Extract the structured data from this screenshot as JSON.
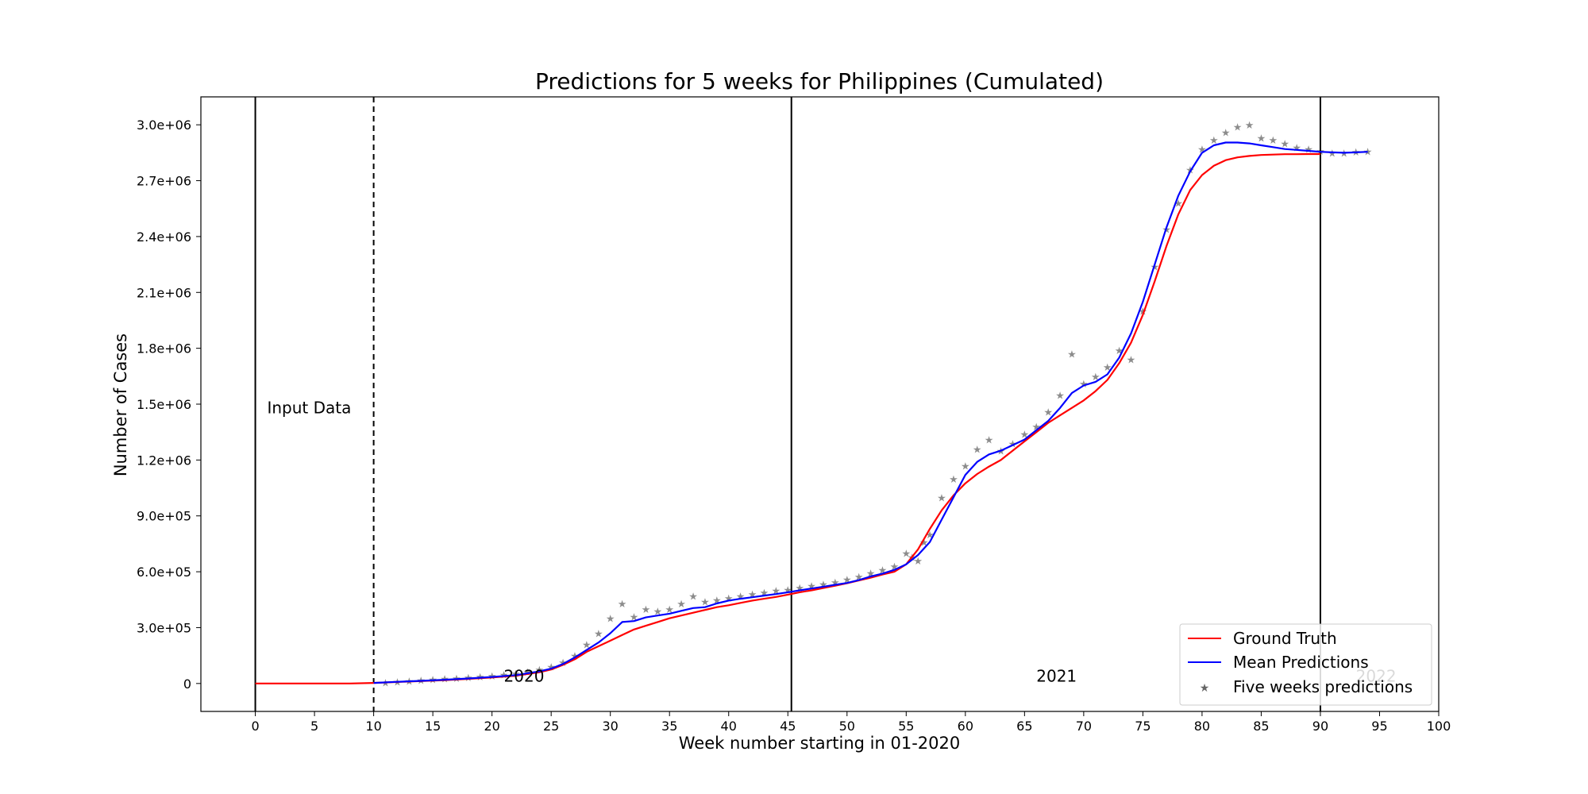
{
  "chart_data": {
    "type": "line",
    "title": "Predictions for 5 weeks for Philippines (Cumulated)",
    "xlabel": "Week number starting in 01-2020",
    "ylabel": "Number of Cases",
    "xlim": [
      -4.6,
      100
    ],
    "ylim": [
      -150000,
      3150000
    ],
    "xticks": [
      0,
      5,
      10,
      15,
      20,
      25,
      30,
      35,
      40,
      45,
      50,
      55,
      60,
      65,
      70,
      75,
      80,
      85,
      90,
      95,
      100
    ],
    "yticks": [
      0,
      300000,
      600000,
      900000,
      1200000,
      1500000,
      1800000,
      2100000,
      2400000,
      2700000,
      3000000
    ],
    "ytick_labels": [
      "0",
      "3.0e+05",
      "6.0e+05",
      "9.0e+05",
      "1.2e+06",
      "1.5e+06",
      "1.8e+06",
      "2.1e+06",
      "2.4e+06",
      "2.7e+06",
      "3.0e+06"
    ],
    "grid": false,
    "legend_position": "lower-right",
    "annotations": [
      {
        "text": "Input Data",
        "x": 1,
        "y": 1450000
      },
      {
        "text": "2020",
        "x": 21,
        "y": 10000
      },
      {
        "text": "2021",
        "x": 66,
        "y": 10000
      },
      {
        "text": "2022",
        "x": 93,
        "y": 10000,
        "color": "#bbbbbb"
      }
    ],
    "vlines": [
      {
        "x": 0,
        "style": "solid"
      },
      {
        "x": 10,
        "style": "dashed"
      },
      {
        "x": 45.3,
        "style": "solid"
      },
      {
        "x": 90,
        "style": "solid"
      }
    ],
    "series": [
      {
        "name": "Ground Truth",
        "color": "#ff0000",
        "x": [
          0,
          2,
          4,
          6,
          8,
          10,
          12,
          14,
          16,
          18,
          20,
          22,
          24,
          25,
          26,
          27,
          28,
          29,
          30,
          31,
          32,
          33,
          34,
          35,
          36,
          37,
          38,
          39,
          40,
          41,
          42,
          43,
          44,
          45,
          46,
          47,
          48,
          49,
          50,
          51,
          52,
          53,
          54,
          55,
          56,
          57,
          58,
          59,
          60,
          61,
          62,
          63,
          64,
          65,
          66,
          67,
          68,
          69,
          70,
          71,
          72,
          73,
          74,
          75,
          76,
          77,
          78,
          79,
          80,
          81,
          82,
          83,
          84,
          85,
          86,
          87,
          88,
          89,
          90
        ],
        "y": [
          0,
          0,
          0,
          0,
          0,
          3000,
          8000,
          13000,
          18000,
          25000,
          32000,
          42000,
          60000,
          75000,
          100000,
          130000,
          170000,
          200000,
          230000,
          260000,
          290000,
          310000,
          330000,
          350000,
          365000,
          380000,
          395000,
          410000,
          420000,
          433000,
          445000,
          455000,
          465000,
          477000,
          490000,
          500000,
          513000,
          525000,
          538000,
          553000,
          568000,
          585000,
          600000,
          640000,
          720000,
          830000,
          930000,
          1010000,
          1075000,
          1125000,
          1165000,
          1200000,
          1250000,
          1300000,
          1350000,
          1400000,
          1440000,
          1480000,
          1520000,
          1570000,
          1630000,
          1720000,
          1830000,
          1980000,
          2160000,
          2350000,
          2520000,
          2650000,
          2730000,
          2780000,
          2810000,
          2825000,
          2833000,
          2838000,
          2840000,
          2842000,
          2842000,
          2843000,
          2843000
        ]
      },
      {
        "name": "Mean Predictions",
        "color": "#0000ff",
        "x": [
          10,
          12,
          14,
          16,
          18,
          20,
          22,
          24,
          25,
          26,
          27,
          28,
          29,
          30,
          31,
          32,
          33,
          34,
          35,
          36,
          37,
          38,
          39,
          40,
          41,
          42,
          43,
          44,
          45,
          46,
          47,
          48,
          49,
          50,
          51,
          52,
          53,
          54,
          55,
          56,
          57,
          58,
          59,
          60,
          61,
          62,
          63,
          64,
          65,
          66,
          67,
          68,
          69,
          70,
          71,
          72,
          73,
          74,
          75,
          76,
          77,
          78,
          79,
          80,
          81,
          82,
          83,
          84,
          85,
          86,
          87,
          88,
          89,
          90,
          91,
          92,
          93,
          94
        ],
        "y": [
          3000,
          9000,
          14000,
          20000,
          27000,
          35000,
          45000,
          65000,
          80000,
          105000,
          140000,
          180000,
          220000,
          270000,
          330000,
          335000,
          355000,
          365000,
          375000,
          390000,
          405000,
          410000,
          430000,
          445000,
          455000,
          463000,
          472000,
          480000,
          490000,
          500000,
          510000,
          520000,
          530000,
          540000,
          555000,
          575000,
          590000,
          610000,
          640000,
          690000,
          760000,
          880000,
          1000000,
          1120000,
          1190000,
          1230000,
          1250000,
          1280000,
          1310000,
          1360000,
          1410000,
          1480000,
          1560000,
          1600000,
          1620000,
          1660000,
          1750000,
          1880000,
          2050000,
          2250000,
          2450000,
          2620000,
          2750000,
          2850000,
          2890000,
          2905000,
          2905000,
          2900000,
          2890000,
          2880000,
          2870000,
          2865000,
          2860000,
          2855000,
          2852000,
          2850000,
          2852000,
          2855000
        ]
      },
      {
        "name": "Five weeks predictions",
        "marker": "star",
        "x": [
          11,
          12,
          13,
          14,
          15,
          16,
          17,
          18,
          19,
          20,
          21,
          22,
          23,
          24,
          25,
          26,
          27,
          28,
          29,
          30,
          31,
          32,
          33,
          34,
          35,
          36,
          37,
          38,
          39,
          40,
          41,
          42,
          43,
          44,
          45,
          46,
          47,
          48,
          49,
          50,
          51,
          52,
          53,
          54,
          55,
          55.5,
          56,
          56.5,
          57,
          58,
          59,
          60,
          61,
          62,
          63,
          64,
          65,
          66,
          67,
          68,
          69,
          70,
          71,
          72,
          73,
          74,
          75,
          76,
          77,
          78,
          79,
          80,
          81,
          82,
          83,
          84,
          85,
          86,
          87,
          88,
          89,
          90,
          91,
          92,
          93,
          94
        ],
        "y": [
          5000,
          10000,
          14000,
          18000,
          22000,
          26000,
          30000,
          34000,
          38000,
          42000,
          48000,
          55000,
          64000,
          75000,
          90000,
          115000,
          150000,
          210000,
          270000,
          350000,
          430000,
          360000,
          400000,
          390000,
          400000,
          430000,
          470000,
          440000,
          450000,
          460000,
          470000,
          480000,
          490000,
          500000,
          505000,
          515000,
          525000,
          535000,
          545000,
          560000,
          575000,
          595000,
          610000,
          630000,
          700000,
          680000,
          660000,
          760000,
          800000,
          1000000,
          1100000,
          1170000,
          1260000,
          1310000,
          1250000,
          1290000,
          1340000,
          1380000,
          1460000,
          1550000,
          1770000,
          1610000,
          1650000,
          1700000,
          1790000,
          1740000,
          2000000,
          2240000,
          2440000,
          2580000,
          2760000,
          2870000,
          2920000,
          2960000,
          2990000,
          3000000,
          2930000,
          2920000,
          2900000,
          2880000,
          2870000,
          2860000,
          2850000,
          2850000,
          2855000,
          2858000
        ],
        "colors": [
          "#1f77b4",
          "#ff7f0e",
          "#2ca02c",
          "#d62728",
          "#9467bd",
          "#8c564b",
          "#e377c2",
          "#7f7f7f",
          "#bcbd22",
          "#17becf"
        ]
      }
    ]
  }
}
